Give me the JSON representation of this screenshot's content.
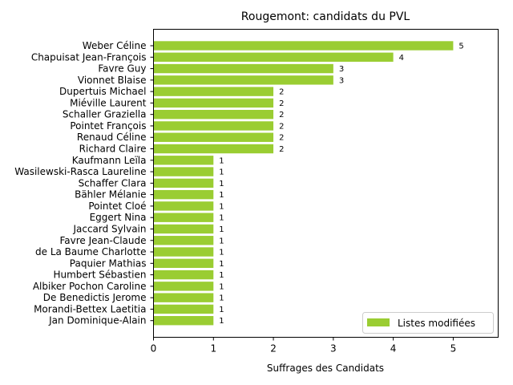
{
  "chart_data": {
    "type": "bar",
    "orientation": "horizontal",
    "title": "Rougemont: candidats du PVL",
    "xlabel": "Suffrages des Candidats",
    "ylabel": "",
    "xlim": [
      0,
      5.75
    ],
    "xticks": [
      0,
      1,
      2,
      3,
      4,
      5
    ],
    "grid": false,
    "legend_position": "lower-right",
    "bar_color": "#9acd32",
    "categories": [
      "Weber Céline",
      "Chapuisat Jean-François",
      "Favre Guy",
      "Vionnet Blaise",
      "Dupertuis Michael",
      "Miéville Laurent",
      "Schaller Graziella",
      "Pointet François",
      "Renaud Céline",
      "Richard Claire",
      "Kaufmann Leïla",
      "Wasilewski-Rasca Laureline",
      "Schaffer Clara",
      "Bähler Mélanie",
      "Pointet Cloé",
      "Eggert Nina",
      "Jaccard Sylvain",
      "Favre Jean-Claude",
      "de La Baume Charlotte",
      "Paquier Mathias",
      "Humbert Sébastien",
      "Albiker Pochon Caroline",
      "De Benedictis Jerome",
      "Morandi-Bettex Laetitia",
      "Jan Dominique-Alain"
    ],
    "series": [
      {
        "name": "Listes modifiées",
        "color": "#9acd32",
        "values": [
          5,
          4,
          3,
          3,
          2,
          2,
          2,
          2,
          2,
          2,
          1,
          1,
          1,
          1,
          1,
          1,
          1,
          1,
          1,
          1,
          1,
          1,
          1,
          1,
          1
        ]
      }
    ]
  }
}
